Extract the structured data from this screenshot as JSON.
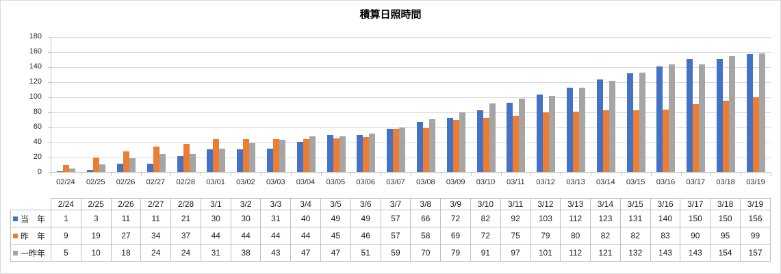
{
  "chart_data": {
    "type": "bar",
    "title": "積算日照時間",
    "categories": [
      "02/24",
      "02/25",
      "02/26",
      "02/27",
      "02/28",
      "03/01",
      "03/02",
      "03/03",
      "03/04",
      "03/05",
      "03/06",
      "03/07",
      "03/08",
      "03/09",
      "03/10",
      "03/11",
      "03/12",
      "03/13",
      "03/14",
      "03/15",
      "03/16",
      "03/17",
      "03/18",
      "03/19"
    ],
    "series": [
      {
        "name": "当　年",
        "color": "#4472C4",
        "values": [
          1,
          3,
          11,
          11,
          21,
          30,
          30,
          31,
          40,
          49,
          49,
          57,
          66,
          72,
          82,
          92,
          103,
          112,
          123,
          131,
          140,
          150,
          150,
          156
        ]
      },
      {
        "name": "昨　年",
        "color": "#ED7D31",
        "values": [
          9,
          19,
          27,
          34,
          37,
          44,
          44,
          44,
          44,
          45,
          46,
          57,
          58,
          69,
          72,
          75,
          79,
          80,
          82,
          82,
          83,
          90,
          95,
          99
        ]
      },
      {
        "name": "一昨年",
        "color": "#A5A5A5",
        "values": [
          5,
          10,
          18,
          24,
          24,
          31,
          38,
          43,
          47,
          47,
          51,
          59,
          70,
          79,
          91,
          97,
          101,
          112,
          121,
          132,
          143,
          143,
          154,
          157
        ]
      }
    ],
    "ylim": [
      0,
      180
    ],
    "ytick_interval": 20,
    "yticks": [
      0,
      20,
      40,
      60,
      80,
      100,
      120,
      140,
      160,
      180
    ],
    "grid": true,
    "legend_position": "data-table-left"
  },
  "data_table": {
    "column_headers": [
      "2/24",
      "2/25",
      "2/26",
      "2/27",
      "2/28",
      "3/1",
      "3/2",
      "3/3",
      "3/4",
      "3/5",
      "3/6",
      "3/7",
      "3/8",
      "3/9",
      "3/10",
      "3/11",
      "3/12",
      "3/13",
      "3/14",
      "3/15",
      "3/16",
      "3/17",
      "3/18",
      "3/19"
    ],
    "rows": [
      {
        "label": "当　年",
        "marker_color": "#4472C4",
        "values": [
          1,
          3,
          11,
          11,
          21,
          30,
          30,
          31,
          40,
          49,
          49,
          57,
          66,
          72,
          82,
          92,
          103,
          112,
          123,
          131,
          140,
          150,
          150,
          156
        ]
      },
      {
        "label": "昨　年",
        "marker_color": "#ED7D31",
        "values": [
          9,
          19,
          27,
          34,
          37,
          44,
          44,
          44,
          44,
          45,
          46,
          57,
          58,
          69,
          72,
          75,
          79,
          80,
          82,
          82,
          83,
          90,
          95,
          99
        ]
      },
      {
        "label": "一昨年",
        "marker_color": "#A5A5A5",
        "values": [
          5,
          10,
          18,
          24,
          24,
          31,
          38,
          43,
          47,
          47,
          51,
          59,
          70,
          79,
          91,
          97,
          101,
          112,
          121,
          132,
          143,
          143,
          154,
          157
        ]
      }
    ]
  },
  "colors": {
    "series_blue": "#4472C4",
    "series_orange": "#ED7D31",
    "series_gray": "#A5A5A5",
    "gridline": "#D9D9D9",
    "axis": "#BFBFBF",
    "table_border": "#BFBFBF"
  }
}
